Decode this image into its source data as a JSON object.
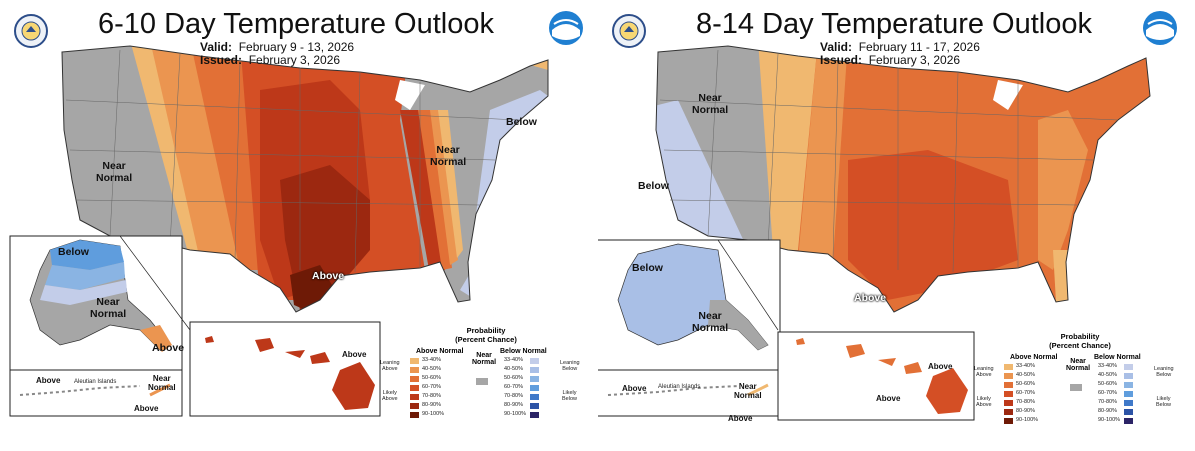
{
  "panels": [
    {
      "title": "6-10 Day Temperature Outlook",
      "valid_label": "Valid:",
      "valid_value": "February 9 - 13, 2026",
      "issued_label": "Issued:",
      "issued_value": "February 3, 2026",
      "labels": {
        "near_normal_west": "Near\nNormal",
        "near_normal_ne": "Near\nNormal",
        "below_ne": "Below",
        "above_south": "Above",
        "ak_below": "Below",
        "ak_near_normal": "Near\nNormal",
        "ak_above": "Above",
        "aleut_above": "Above",
        "aleut_islands": "Aleutian Islands",
        "aleut_near_normal": "Near\nNormal",
        "aleut_above2": "Above",
        "hi_above": "Above"
      }
    },
    {
      "title": "8-14 Day Temperature Outlook",
      "valid_label": "Valid:",
      "valid_value": "February 11 - 17, 2026",
      "issued_label": "Issued:",
      "issued_value": "February 3, 2026",
      "labels": {
        "near_normal_nw": "Near\nNormal",
        "below_west": "Below",
        "above_south": "Above",
        "ak_below": "Below",
        "ak_near_normal": "Near\nNormal",
        "aleut_above": "Above",
        "aleut_islands": "Aleutian Islands",
        "aleut_near_normal": "Near\nNormal",
        "aleut_above2": "Above",
        "hi_above": "Above",
        "hi_above2": "Above"
      }
    }
  ],
  "legend": {
    "title": "Probability\n(Percent Chance)",
    "above_header": "Above Normal",
    "near_header": "Near\nNormal",
    "below_header": "Below Normal",
    "leaning_above": "Leaning\nAbove",
    "likely_above": "Likely\nAbove",
    "leaning_below": "Leaning\nBelow",
    "likely_below": "Likely\nBelow",
    "ranges": [
      "33-40%",
      "40-50%",
      "50-60%",
      "60-70%",
      "70-80%",
      "80-90%",
      "90-100%"
    ],
    "above_colors": [
      "#f0b870",
      "#eb9550",
      "#e27036",
      "#d44f25",
      "#bd3819",
      "#9c2810",
      "#6e1a06"
    ],
    "below_colors": [
      "#c3cde9",
      "#a9bfe6",
      "#8ab4e3",
      "#5f9ddd",
      "#3f79c9",
      "#2c53a6",
      "#2b2466"
    ],
    "near_color": "#a6a6a6"
  }
}
